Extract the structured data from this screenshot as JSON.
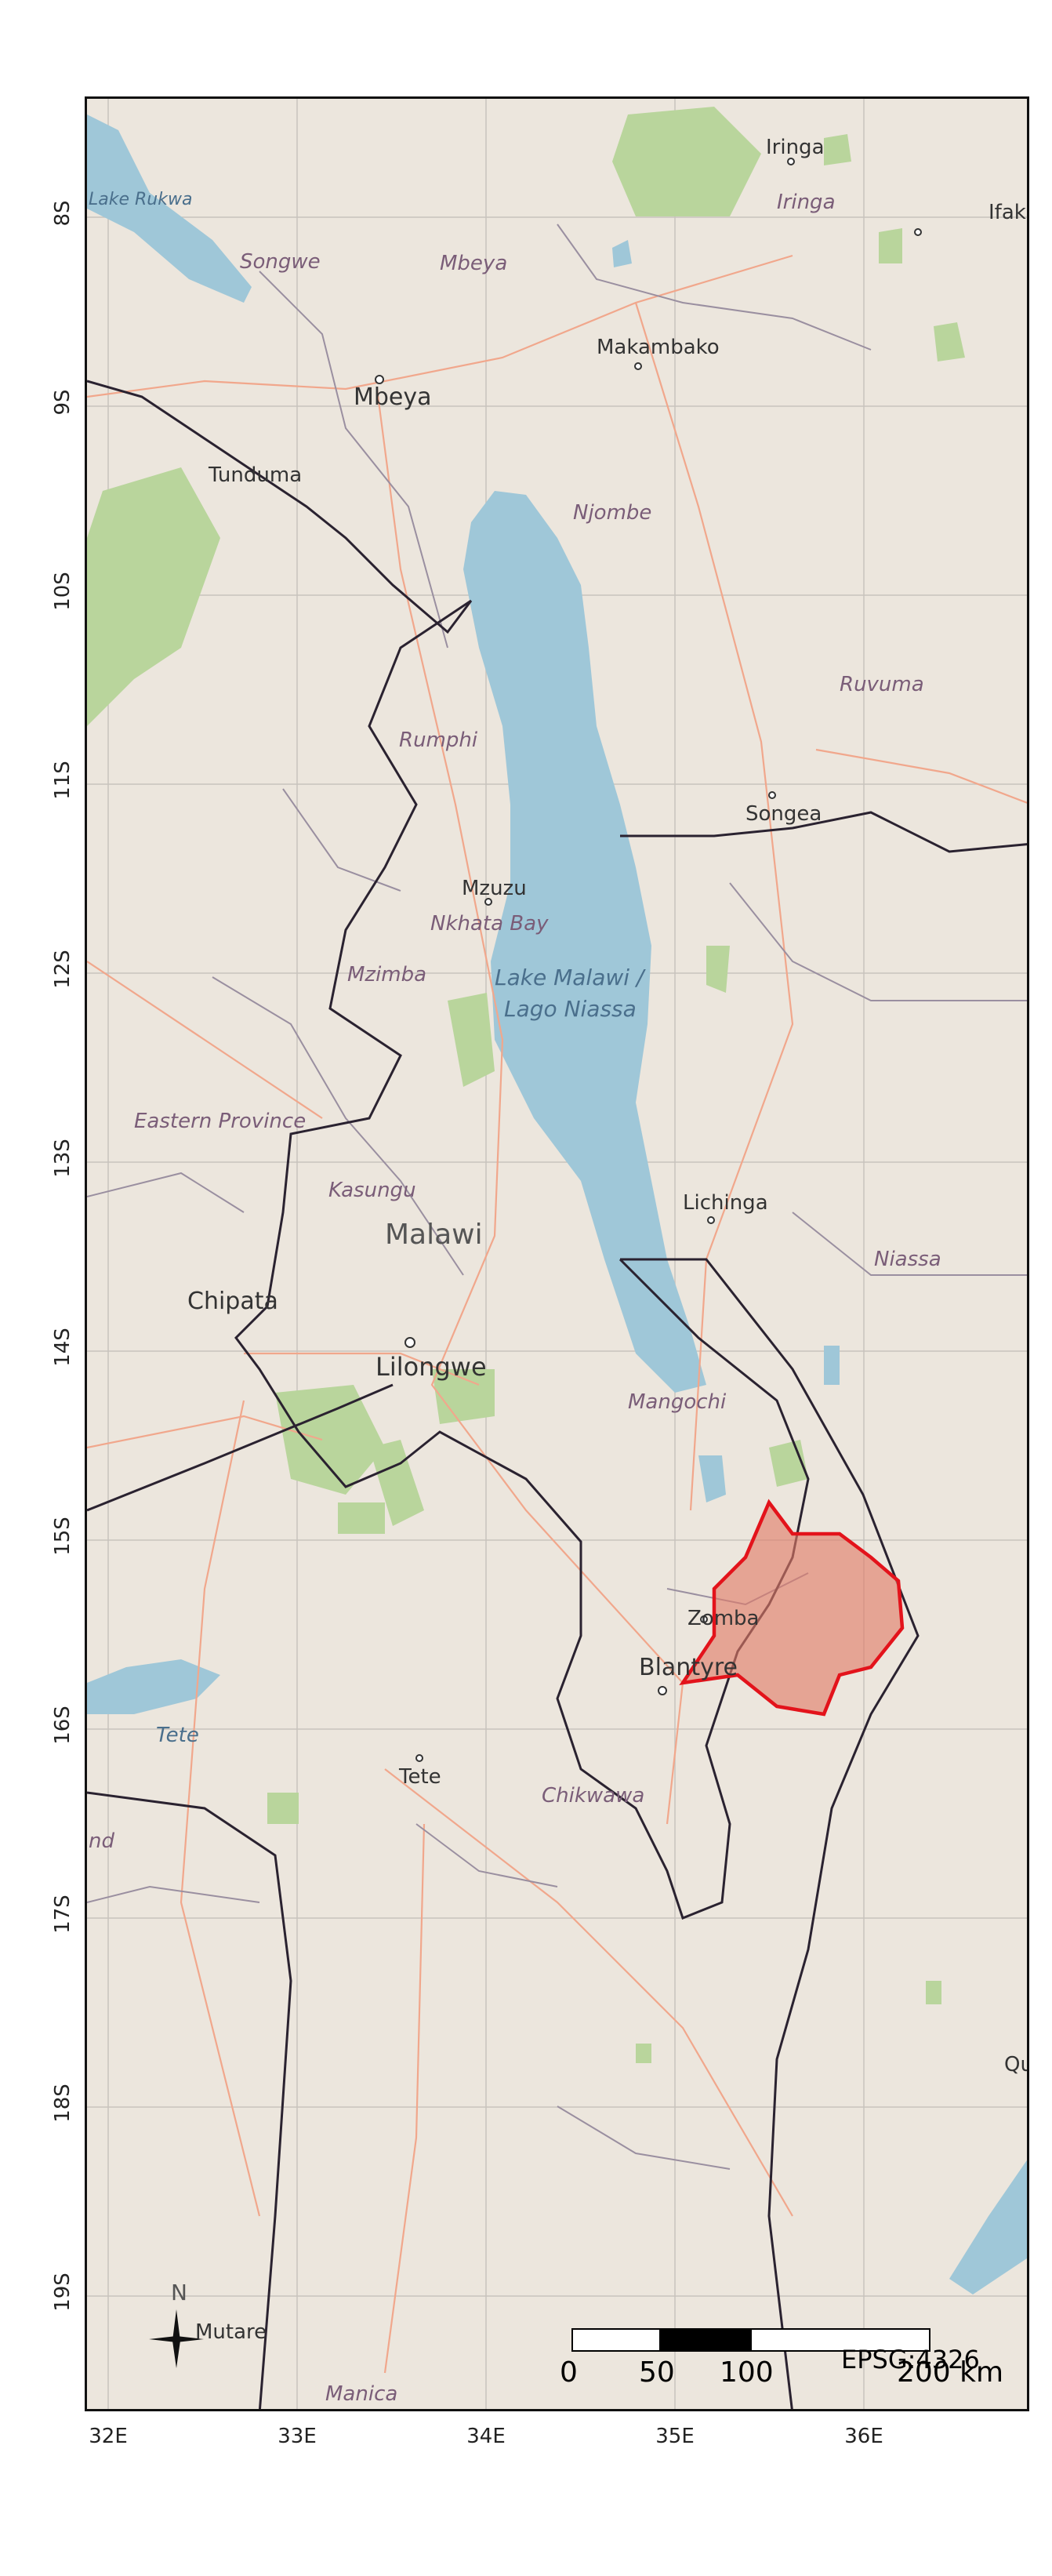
{
  "map": {
    "axis_lat": [
      "8S",
      "9S",
      "10S",
      "11S",
      "12S",
      "13S",
      "14S",
      "15S",
      "16S",
      "17S",
      "18S",
      "19S"
    ],
    "axis_lon": [
      "32E",
      "33E",
      "34E",
      "35E",
      "36E"
    ],
    "places": [
      "Iringa",
      "Ifaka",
      "Makambako",
      "Mbeya",
      "Tunduma",
      "Songea",
      "Mzuzu",
      "Lichinga",
      "Chipata",
      "Lilongwe",
      "Zomba",
      "Blantyre",
      "Tete",
      "Mutare",
      "Qu"
    ],
    "regions": [
      "Iringa",
      "Songwe",
      "Mbeya",
      "Njombe",
      "Ruvuma",
      "Rumphi",
      "Nkhata Bay",
      "Mzimba",
      "Eastern Province",
      "Kasungu",
      "Niassa",
      "Mangochi",
      "Chikwawa",
      "Manica",
      "nd"
    ],
    "water": [
      "Lake Rukwa",
      "Lake Malawi /",
      "Lago Niassa",
      "Tete"
    ],
    "country_label": "Malawi",
    "scale": {
      "ticks": [
        "0",
        "50",
        "100",
        "200 km"
      ],
      "crs": "EPSG:4326"
    },
    "north_label": "N",
    "highlight": {
      "stroke": "#e3131b",
      "fill": "#e07a68"
    },
    "colors": {
      "land": "#ece6dd",
      "water": "#9fc7d8",
      "park": "#b9d59c",
      "border": "#2a2230",
      "road": "#f1a78c"
    }
  }
}
